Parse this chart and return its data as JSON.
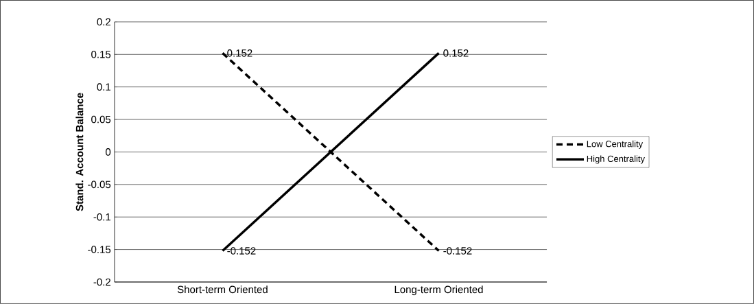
{
  "chart_data": {
    "type": "line",
    "ylabel": "Stand. Account Balance",
    "categories": [
      "Short-term Oriented",
      "Long-term Oriented"
    ],
    "series": [
      {
        "name": "Low Centrality",
        "color": "#000000",
        "line_style": "dashed",
        "values": [
          0.152,
          -0.152
        ],
        "value_labels": [
          "0.152",
          "-0.152"
        ]
      },
      {
        "name": "High Centrality",
        "color": "#000000",
        "line_style": "solid",
        "values": [
          -0.152,
          0.152
        ],
        "value_labels": [
          "-0.152",
          "0.152"
        ]
      }
    ],
    "ylim": [
      -0.2,
      0.2
    ],
    "yticks": [
      -0.2,
      -0.15,
      -0.1,
      -0.05,
      0,
      0.05,
      0.1,
      0.15,
      0.2
    ],
    "grid": "y",
    "legend": "right",
    "marker": "none"
  }
}
